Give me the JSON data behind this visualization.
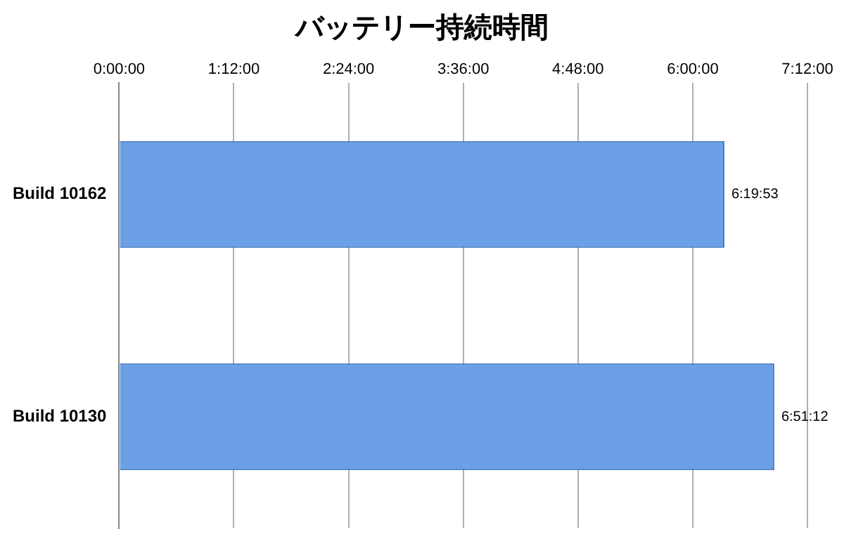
{
  "chart_data": {
    "type": "bar",
    "orientation": "horizontal",
    "title": "バッテリー持続時間",
    "categories": [
      "Build 10162",
      "Build 10130"
    ],
    "values": [
      6.3314,
      6.8533
    ],
    "value_labels": [
      "6:19:53",
      "6:51:12"
    ],
    "color": "#6b9fe6",
    "xlim": [
      0,
      7.2
    ],
    "xticks": [
      {
        "value": 0,
        "label": "0:00:00"
      },
      {
        "value": 1.2,
        "label": "1:12:00"
      },
      {
        "value": 2.4,
        "label": "2:24:00"
      },
      {
        "value": 3.6,
        "label": "3:36:00"
      },
      {
        "value": 4.8,
        "label": "4:48:00"
      },
      {
        "value": 6,
        "label": "6:00:00"
      },
      {
        "value": 7.2,
        "label": "7:12:00"
      }
    ],
    "grid": "x"
  }
}
